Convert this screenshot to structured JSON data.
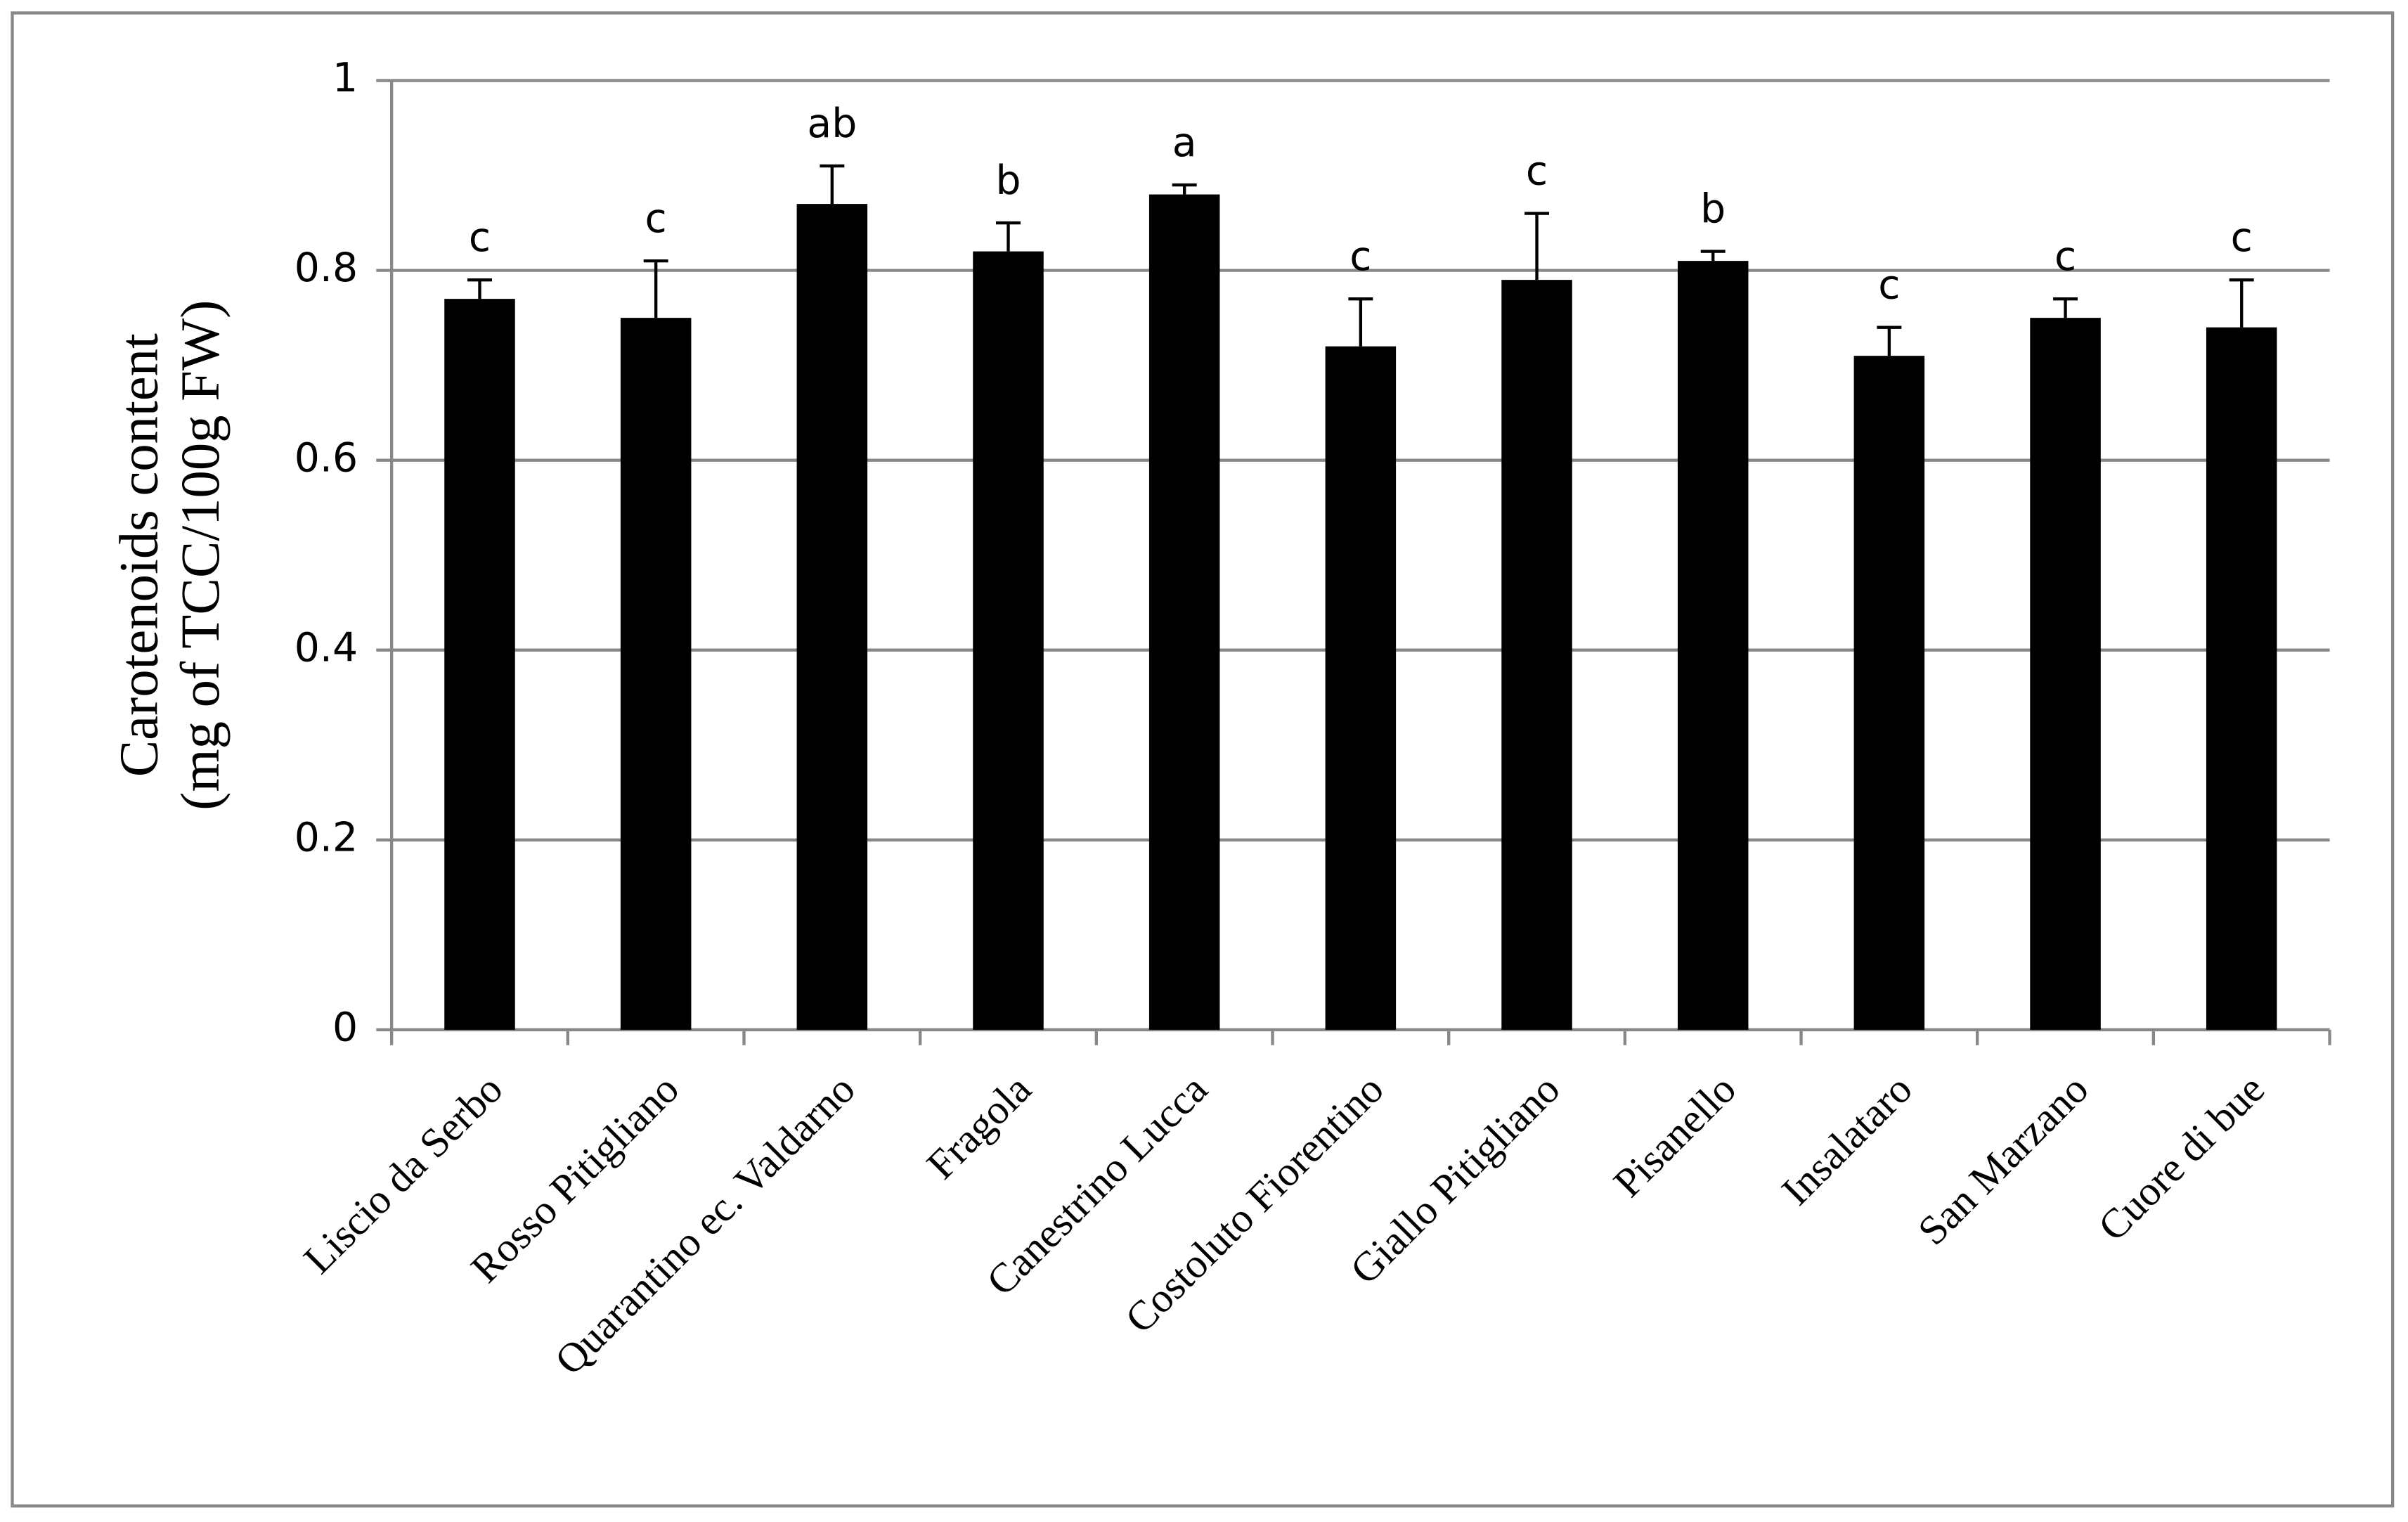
{
  "chart_data": {
    "type": "bar",
    "y_label": [
      "Carotenoids content",
      "(mg of TCC/100g FW)"
    ],
    "categories": [
      "Liscio da Serbo",
      "Rosso Pitigliano",
      "Quarantino ec. Valdarno",
      "Fragola",
      "Canestrino Lucca",
      "Costoluto Fiorentino",
      "Giallo Pitigliano",
      "Pisanello",
      "Insalataro",
      "San Marzano",
      "Cuore di bue"
    ],
    "values": [
      0.77,
      0.75,
      0.87,
      0.82,
      0.88,
      0.72,
      0.79,
      0.81,
      0.71,
      0.75,
      0.74
    ],
    "errors": [
      0.02,
      0.06,
      0.04,
      0.03,
      0.01,
      0.05,
      0.07,
      0.01,
      0.03,
      0.02,
      0.05
    ],
    "significance_letters": [
      "c",
      "c",
      "ab",
      "b",
      "a",
      "c",
      "c",
      "b",
      "c",
      "c",
      "c"
    ],
    "color": "#000000",
    "ylim": [
      0,
      1
    ],
    "yticks": [
      0,
      0.2,
      0.4,
      0.6,
      0.8,
      1
    ],
    "grid": true
  }
}
